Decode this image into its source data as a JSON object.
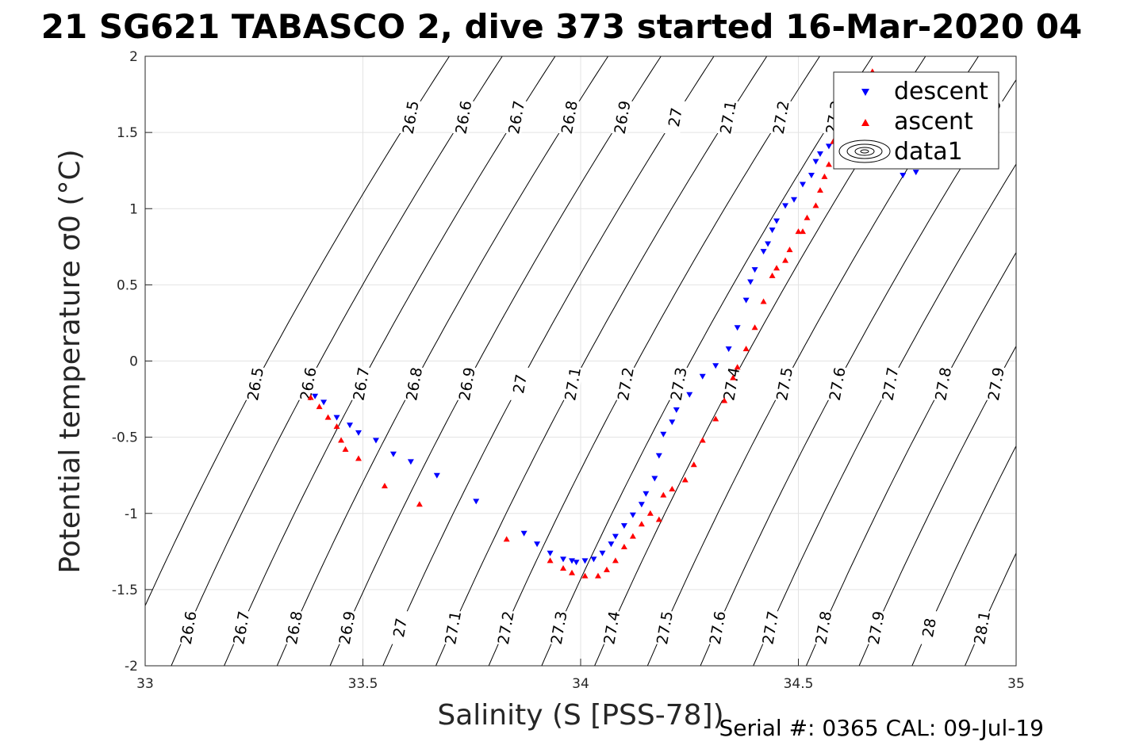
{
  "title": "21 SG621 TABASCO 2, dive 373 started 16-Mar-2020 04",
  "serial_text": "Serial #: 0365  CAL: 09-Jul-19",
  "colors": {
    "descent": "#0000ff",
    "ascent": "#ff0000",
    "grid": "#e3e3e3",
    "axis": "#262626",
    "contour": "#000000"
  },
  "chart_data": {
    "type": "scatter",
    "xlabel": "Salinity (S [PSS-78])",
    "ylabel": "Potential temperature σ0 (°C)",
    "xlim": [
      33,
      35
    ],
    "ylim": [
      -2,
      2
    ],
    "xticks": [
      "33",
      "33.5",
      "34",
      "34.5",
      "35"
    ],
    "yticks": [
      "-2",
      "-1.5",
      "-1",
      "-0.5",
      "0",
      "0.5",
      "1",
      "1.5",
      "2"
    ],
    "grid": true,
    "legend": {
      "position": "top-right",
      "entries": [
        "descent",
        "ascent",
        "data1"
      ]
    },
    "contour_levels": [
      "26.5",
      "26.6",
      "26.7",
      "26.8",
      "26.9",
      "27",
      "27.1",
      "27.2",
      "27.3",
      "27.4",
      "27.5",
      "27.6",
      "27.7",
      "27.8",
      "27.9",
      "28",
      "28.1"
    ],
    "series": [
      {
        "name": "descent",
        "marker": "triangle-down",
        "color": "#0000ff",
        "points": [
          [
            33.39,
            -0.23
          ],
          [
            33.41,
            -0.27
          ],
          [
            33.44,
            -0.37
          ],
          [
            33.47,
            -0.42
          ],
          [
            33.49,
            -0.47
          ],
          [
            33.53,
            -0.52
          ],
          [
            33.57,
            -0.61
          ],
          [
            33.61,
            -0.66
          ],
          [
            33.67,
            -0.75
          ],
          [
            33.76,
            -0.92
          ],
          [
            33.87,
            -1.13
          ],
          [
            33.9,
            -1.2
          ],
          [
            33.93,
            -1.26
          ],
          [
            33.96,
            -1.3
          ],
          [
            33.98,
            -1.31
          ],
          [
            33.99,
            -1.32
          ],
          [
            34.01,
            -1.31
          ],
          [
            34.03,
            -1.3
          ],
          [
            34.05,
            -1.26
          ],
          [
            34.07,
            -1.2
          ],
          [
            34.08,
            -1.15
          ],
          [
            34.1,
            -1.08
          ],
          [
            34.12,
            -1.01
          ],
          [
            34.14,
            -0.94
          ],
          [
            34.15,
            -0.87
          ],
          [
            34.17,
            -0.77
          ],
          [
            34.18,
            -0.62
          ],
          [
            34.19,
            -0.48
          ],
          [
            34.21,
            -0.4
          ],
          [
            34.22,
            -0.32
          ],
          [
            34.25,
            -0.22
          ],
          [
            34.28,
            -0.1
          ],
          [
            34.31,
            -0.03
          ],
          [
            34.34,
            0.08
          ],
          [
            34.36,
            0.22
          ],
          [
            34.38,
            0.4
          ],
          [
            34.39,
            0.52
          ],
          [
            34.4,
            0.6
          ],
          [
            34.42,
            0.72
          ],
          [
            34.43,
            0.77
          ],
          [
            34.44,
            0.86
          ],
          [
            34.45,
            0.92
          ],
          [
            34.47,
            1.02
          ],
          [
            34.49,
            1.06
          ],
          [
            34.51,
            1.16
          ],
          [
            34.53,
            1.22
          ],
          [
            34.54,
            1.31
          ],
          [
            34.55,
            1.36
          ],
          [
            34.57,
            1.41
          ],
          [
            34.6,
            1.5
          ],
          [
            34.63,
            1.56
          ],
          [
            34.68,
            1.5
          ],
          [
            34.72,
            1.3
          ],
          [
            34.74,
            1.22
          ],
          [
            34.77,
            1.24
          ]
        ]
      },
      {
        "name": "ascent",
        "marker": "triangle-up",
        "color": "#ff0000",
        "points": [
          [
            33.38,
            -0.24
          ],
          [
            33.4,
            -0.3
          ],
          [
            33.42,
            -0.37
          ],
          [
            33.44,
            -0.43
          ],
          [
            33.45,
            -0.52
          ],
          [
            33.46,
            -0.58
          ],
          [
            33.49,
            -0.64
          ],
          [
            33.55,
            -0.82
          ],
          [
            33.63,
            -0.94
          ],
          [
            33.83,
            -1.17
          ],
          [
            33.93,
            -1.31
          ],
          [
            33.96,
            -1.36
          ],
          [
            33.98,
            -1.39
          ],
          [
            34.01,
            -1.41
          ],
          [
            34.04,
            -1.41
          ],
          [
            34.06,
            -1.37
          ],
          [
            34.08,
            -1.31
          ],
          [
            34.1,
            -1.22
          ],
          [
            34.12,
            -1.15
          ],
          [
            34.14,
            -1.07
          ],
          [
            34.16,
            -1.0
          ],
          [
            34.18,
            -1.04
          ],
          [
            34.19,
            -0.88
          ],
          [
            34.21,
            -0.84
          ],
          [
            34.24,
            -0.78
          ],
          [
            34.26,
            -0.68
          ],
          [
            34.28,
            -0.52
          ],
          [
            34.31,
            -0.38
          ],
          [
            34.33,
            -0.26
          ],
          [
            34.35,
            -0.11
          ],
          [
            34.36,
            -0.04
          ],
          [
            34.38,
            0.08
          ],
          [
            34.4,
            0.22
          ],
          [
            34.42,
            0.39
          ],
          [
            34.44,
            0.56
          ],
          [
            34.45,
            0.61
          ],
          [
            34.47,
            0.66
          ],
          [
            34.48,
            0.73
          ],
          [
            34.5,
            0.85
          ],
          [
            34.51,
            0.85
          ],
          [
            34.52,
            0.94
          ],
          [
            34.54,
            1.02
          ],
          [
            34.55,
            1.12
          ],
          [
            34.56,
            1.21
          ],
          [
            34.57,
            1.29
          ],
          [
            34.58,
            1.44
          ],
          [
            34.59,
            1.53
          ],
          [
            34.6,
            1.58
          ],
          [
            34.61,
            1.64
          ],
          [
            34.63,
            1.73
          ],
          [
            34.65,
            1.8
          ],
          [
            34.66,
            1.88
          ],
          [
            34.67,
            1.9
          ],
          [
            34.69,
            1.83
          ],
          [
            34.71,
            1.78
          ],
          [
            34.72,
            1.65
          ],
          [
            34.73,
            1.4
          ],
          [
            34.74,
            1.28
          ]
        ]
      }
    ]
  }
}
